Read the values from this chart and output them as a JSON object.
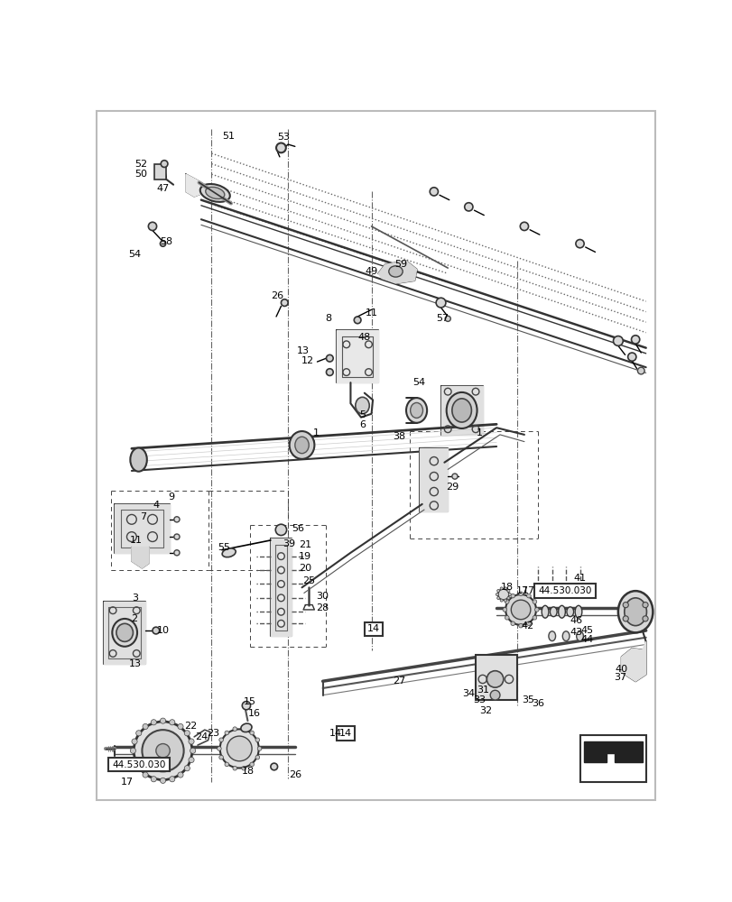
{
  "bg_color": "#ffffff",
  "figsize": [
    8.12,
    10.0
  ],
  "dpi": 100
}
